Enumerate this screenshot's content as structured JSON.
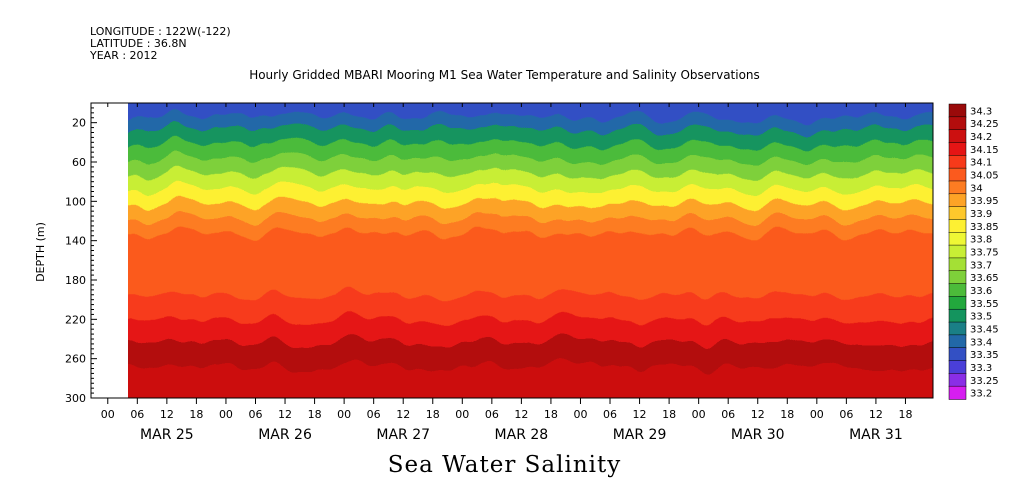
{
  "header": {
    "longitude": "LONGITUDE : 122W(-122)",
    "latitude": "LATITUDE : 36.8N",
    "year": "YEAR : 2012"
  },
  "chart_data": {
    "type": "heatmap",
    "title": "Hourly Gridded MBARI Mooring M1 Sea Water Temperature and Salinity Observations",
    "footer_label": "Sea Water Salinity",
    "ylabel": "DEPTH (m)",
    "ylim": [
      300,
      0
    ],
    "y_ticks": [
      20,
      60,
      100,
      140,
      180,
      220,
      260,
      300
    ],
    "x_hour_ticks": [
      "00",
      "06",
      "12",
      "18",
      "00",
      "06",
      "12",
      "18",
      "00",
      "06",
      "12",
      "18",
      "00",
      "06",
      "12",
      "18",
      "00",
      "06",
      "12",
      "18",
      "00",
      "06",
      "12",
      "18",
      "00",
      "06",
      "12",
      "18"
    ],
    "x_day_labels": [
      "MAR 25",
      "MAR 26",
      "MAR 27",
      "MAR 28",
      "MAR 29",
      "MAR 30",
      "MAR 31"
    ],
    "data_start": "MAR 25 06",
    "colorbar": {
      "levels": [
        "34.3",
        "34.25",
        "34.2",
        "34.15",
        "34.1",
        "34.05",
        "34",
        "33.95",
        "33.9",
        "33.85",
        "33.8",
        "33.75",
        "33.7",
        "33.65",
        "33.6",
        "33.55",
        "33.5",
        "33.45",
        "33.4",
        "33.35",
        "33.3",
        "33.25",
        "33.2"
      ],
      "colors": [
        "#9a0a0a",
        "#b30d0d",
        "#cc1010",
        "#e51515",
        "#f73a1a",
        "#fb5a1e",
        "#fd7c22",
        "#fda326",
        "#fdc82c",
        "#fdf033",
        "#eef735",
        "#c8ee35",
        "#a4e035",
        "#7ed03a",
        "#4cbb3a",
        "#22a83d",
        "#14945e",
        "#1a7f86",
        "#2268a8",
        "#3350c4",
        "#4a3fd8",
        "#8a2ee6",
        "#d61ef0"
      ]
    },
    "depth_profile": [
      {
        "depth": 10,
        "value": 33.38
      },
      {
        "depth": 20,
        "value": 33.42
      },
      {
        "depth": 35,
        "value": 33.5
      },
      {
        "depth": 50,
        "value": 33.6
      },
      {
        "depth": 65,
        "value": 33.68
      },
      {
        "depth": 80,
        "value": 33.78
      },
      {
        "depth": 95,
        "value": 33.88
      },
      {
        "depth": 110,
        "value": 33.95
      },
      {
        "depth": 125,
        "value": 34.0
      },
      {
        "depth": 140,
        "value": 34.05
      },
      {
        "depth": 180,
        "value": 34.08
      },
      {
        "depth": 210,
        "value": 34.12
      },
      {
        "depth": 230,
        "value": 34.18
      },
      {
        "depth": 255,
        "value": 34.26
      },
      {
        "depth": 280,
        "value": 34.22
      },
      {
        "depth": 300,
        "value": 34.2
      }
    ]
  }
}
